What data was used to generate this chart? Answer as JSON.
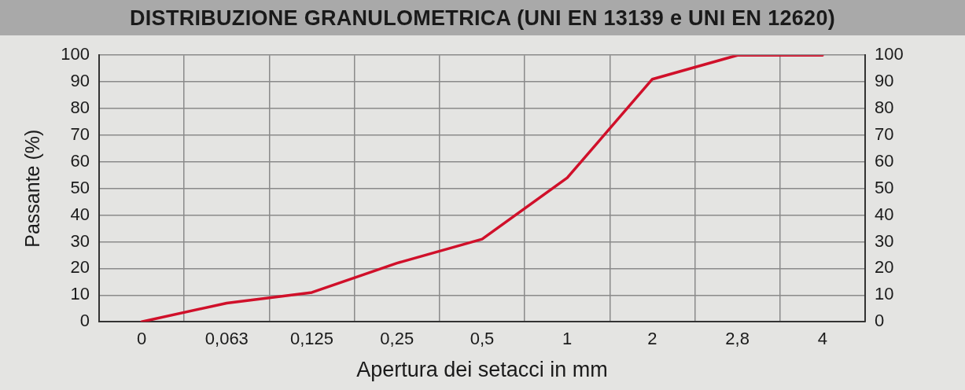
{
  "chart_data": {
    "type": "line",
    "title": "DISTRIBUZIONE GRANULOMETRICA (UNI EN 13139 e UNI EN 12620)",
    "xlabel": "Apertura dei setacci in mm",
    "ylabel": "Passante (%)",
    "categories": [
      "0",
      "0,063",
      "0,125",
      "0,25",
      "0,5",
      "1",
      "2",
      "2,8",
      "4"
    ],
    "series": [
      {
        "color": "#d0102a",
        "values": [
          0,
          7,
          11,
          22,
          31,
          54,
          91,
          100,
          100
        ]
      }
    ],
    "ylim": [
      0,
      100
    ],
    "yticks": [
      0,
      10,
      20,
      30,
      40,
      50,
      60,
      70,
      80,
      90,
      100
    ],
    "y2lim": [
      0,
      100
    ],
    "y2ticks": [
      0,
      10,
      20,
      30,
      40,
      50,
      60,
      70,
      80,
      90,
      100
    ],
    "grid": true,
    "legend": false,
    "marker": "none",
    "line_style": "solid"
  }
}
